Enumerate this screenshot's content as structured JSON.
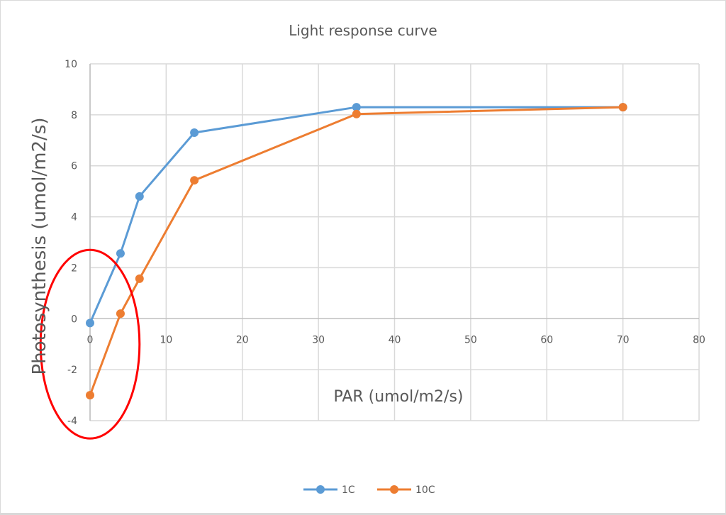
{
  "chart_data": {
    "type": "line",
    "title": "Light response curve",
    "xlabel": "PAR (umol/m2/s)",
    "ylabel": "Photosynthesis (umol/m2/s)",
    "xlim": [
      0,
      80
    ],
    "ylim": [
      -4,
      10
    ],
    "xticks": [
      0,
      10,
      20,
      30,
      40,
      50,
      60,
      70,
      80
    ],
    "yticks": [
      -4,
      -2,
      0,
      2,
      4,
      6,
      8,
      10
    ],
    "xtick_labels": [
      "0",
      "10",
      "20",
      "30",
      "40",
      "50",
      "60",
      "70",
      "80"
    ],
    "ytick_labels": [
      "-4",
      "-2",
      "0",
      "2",
      "4",
      "6",
      "8",
      "10"
    ],
    "grid": true,
    "legend_position": "bottom",
    "series": [
      {
        "name": "1C",
        "color": "#5b9bd5",
        "x": [
          0,
          4,
          6.5,
          13.7,
          35,
          70
        ],
        "y": [
          -0.17,
          2.56,
          4.8,
          7.3,
          8.3,
          8.3
        ]
      },
      {
        "name": "10C",
        "color": "#ed7d31",
        "x": [
          0,
          4,
          6.5,
          13.7,
          35,
          70
        ],
        "y": [
          -3.0,
          0.2,
          1.57,
          5.43,
          8.03,
          8.3
        ]
      }
    ],
    "annotations": [
      {
        "type": "ellipse",
        "description": "red hand-drawn ellipse highlighting the negative/near-zero low-light region",
        "color": "#ff0000",
        "center": [
          0,
          -1
        ],
        "x_radius": 6.5,
        "y_radius": 3.7
      }
    ]
  }
}
